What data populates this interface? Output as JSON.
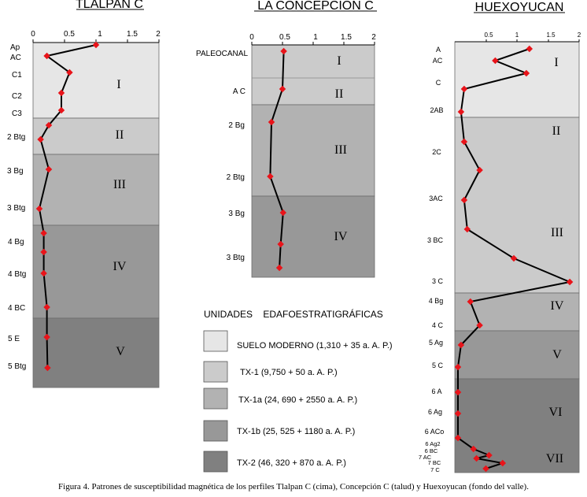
{
  "titles": {
    "p1": "TLALPAN C",
    "p2": "LA CONCEPCION C",
    "p3": "HUEXOYUCAN"
  },
  "colors": {
    "suelo_moderno": "#e6e6e6",
    "tx1": "#cbcbcb",
    "tx1a": "#b2b2b2",
    "tx1b": "#989898",
    "tx2": "#808080",
    "marker": "#e8141a",
    "line": "#000000"
  },
  "legend": {
    "title": "UNIDADES    EDAFOESTRATIGRÁFICAS",
    "items": [
      {
        "label": "SUELO MODERNO (1,310 + 35 a. A. P.)",
        "color": "#e6e6e6"
      },
      {
        "label": "TX-1 (9,750 + 50 a. A. P.)",
        "color": "#cbcbcb"
      },
      {
        "label": "TX-1a (24, 690 + 2550 a. A. P.)",
        "color": "#b2b2b2"
      },
      {
        "label": "TX-1b (25, 525 + 1180 a. A. P.)",
        "color": "#989898"
      },
      {
        "label": "TX-2 (46, 320 + 870 a. A. P.)",
        "color": "#808080"
      }
    ]
  },
  "caption": "Figura 4. Patrones de susceptibilidad magnética de los perfiles Tlalpan C (cima), Concepción C (talud) y Huexoyucan (fondo del valle).",
  "chart_data": [
    {
      "type": "line",
      "title": "TLALPAN C",
      "xlim": [
        0,
        2
      ],
      "ticks": [
        "0",
        "0.5",
        "1",
        "1.5",
        "2"
      ],
      "horizons": [
        "Ap",
        "AC",
        "C1",
        "C2",
        "C3",
        "2 Btg",
        "3 Bg",
        "3 Btg",
        "4 Bg",
        "4 Btg",
        "4 BC",
        "5 E",
        "5 Btg"
      ],
      "values": [
        1.0,
        0.22,
        0.58,
        0.45,
        0.45,
        0.25,
        0.12,
        0.25,
        0.1,
        0.17,
        0.17,
        0.17,
        0.22,
        0.22,
        0.23
      ],
      "units": [
        "I",
        "II",
        "III",
        "IV",
        "V"
      ]
    },
    {
      "type": "line",
      "title": "LA CONCEPCION C",
      "xlim": [
        0,
        2
      ],
      "ticks": [
        "0",
        "0.5",
        "1",
        "1.5",
        "2"
      ],
      "horizons": [
        "PALEOCANAL",
        "A C",
        "2 Bg",
        "2 Btg",
        "3 Bg",
        "3 Btg"
      ],
      "values": [
        0.52,
        0.5,
        0.32,
        0.3,
        0.51,
        0.47,
        0.45
      ],
      "units": [
        "I",
        "II",
        "III",
        "IV"
      ]
    },
    {
      "type": "line",
      "title": "HUEXOYUCAN",
      "xlim": [
        0,
        2
      ],
      "ticks": [
        "0.5",
        "1",
        "1.5",
        "2"
      ],
      "horizons": [
        "A",
        "AC",
        "C",
        "2AB",
        "2C",
        "3AC",
        "3 BC",
        "3 C",
        "4 Bg",
        "4 C",
        "5 Ag",
        "5 C",
        "6 A",
        "6 Ag",
        "6 ACo",
        "6 Ag2",
        "6 BC",
        "7 AC",
        "7 BC",
        "7 C"
      ],
      "values": [
        1.2,
        0.65,
        1.15,
        0.15,
        0.1,
        0.15,
        0.4,
        0.15,
        0.2,
        0.95,
        1.85,
        0.25,
        0.4,
        0.1,
        0.05,
        0.05,
        0.05,
        0.05,
        0.3,
        0.55,
        0.35,
        0.77,
        0.5
      ],
      "units": [
        "I",
        "II",
        "III",
        "IV",
        "V",
        "VI",
        "VII"
      ]
    }
  ]
}
